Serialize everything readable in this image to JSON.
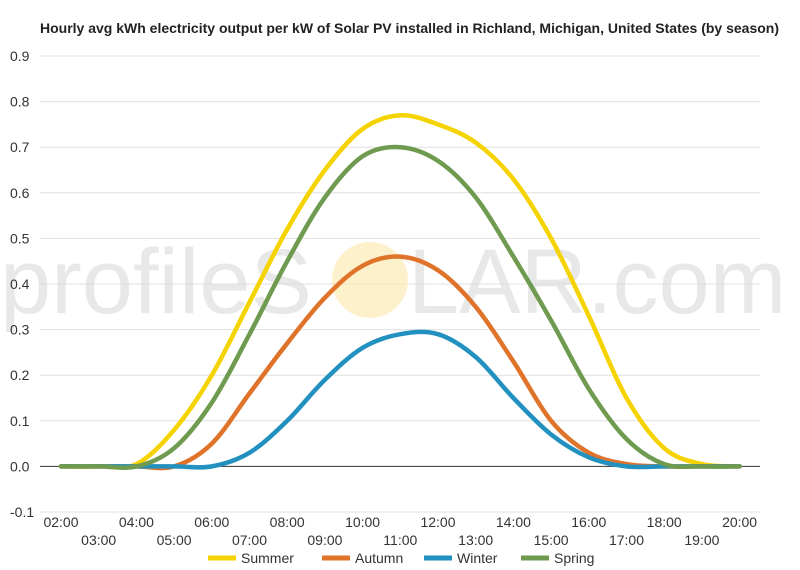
{
  "chart_data": {
    "type": "line",
    "title": "Hourly avg kWh electricity output per kW of Solar PV installed in Richland, Michigan, United States (by season)",
    "xlabel": "",
    "ylabel": "",
    "ylim": [
      -0.1,
      0.9
    ],
    "yticks": [
      "-0.1",
      "0.0",
      "0.1",
      "0.2",
      "0.3",
      "0.4",
      "0.5",
      "0.6",
      "0.7",
      "0.8",
      "0.9"
    ],
    "xticks_top": [
      "02:00",
      "04:00",
      "06:00",
      "08:00",
      "10:00",
      "12:00",
      "14:00",
      "16:00",
      "18:00",
      "20:00"
    ],
    "xticks_bottom": [
      "03:00",
      "05:00",
      "07:00",
      "09:00",
      "11:00",
      "13:00",
      "15:00",
      "17:00",
      "19:00"
    ],
    "x": [
      "02:00",
      "03:00",
      "04:00",
      "05:00",
      "06:00",
      "07:00",
      "08:00",
      "09:00",
      "10:00",
      "11:00",
      "12:00",
      "13:00",
      "14:00",
      "15:00",
      "16:00",
      "17:00",
      "18:00",
      "19:00",
      "20:00"
    ],
    "series": [
      {
        "name": "Summer",
        "color": "#f5d300",
        "values": [
          0,
          0,
          0.005,
          0.08,
          0.2,
          0.36,
          0.52,
          0.65,
          0.74,
          0.77,
          0.75,
          0.71,
          0.63,
          0.5,
          0.33,
          0.15,
          0.04,
          0.005,
          0
        ]
      },
      {
        "name": "Autumn",
        "color": "#e0732a",
        "values": [
          0,
          0,
          0,
          0,
          0.05,
          0.16,
          0.27,
          0.37,
          0.44,
          0.46,
          0.43,
          0.35,
          0.23,
          0.1,
          0.03,
          0.005,
          0,
          0,
          0
        ]
      },
      {
        "name": "Winter",
        "color": "#2391c0",
        "values": [
          0,
          0,
          0,
          0,
          0,
          0.03,
          0.1,
          0.19,
          0.26,
          0.29,
          0.29,
          0.24,
          0.15,
          0.07,
          0.02,
          0,
          0,
          0,
          0
        ]
      },
      {
        "name": "Spring",
        "color": "#6e9b4f",
        "values": [
          0,
          0,
          0,
          0.04,
          0.14,
          0.29,
          0.45,
          0.59,
          0.68,
          0.7,
          0.67,
          0.59,
          0.46,
          0.32,
          0.17,
          0.06,
          0.005,
          0,
          0
        ]
      }
    ],
    "grid": true,
    "legend": "bottom"
  },
  "watermark": {
    "left": "profileS",
    "right": "LAR.com"
  }
}
